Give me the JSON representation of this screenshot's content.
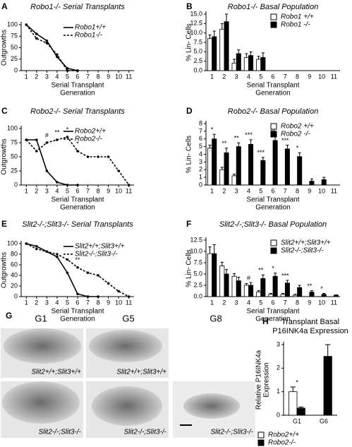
{
  "chart_data": [
    {
      "panel": "A",
      "type": "line",
      "title": "Robo1-/- Serial Transplants",
      "ylabel": [
        "% Glands With",
        "Outgrowths"
      ],
      "xlabel": [
        "Serial Transplant",
        "Generation"
      ],
      "x": [
        1,
        2,
        3,
        4,
        5,
        6,
        7,
        8,
        9,
        10,
        11
      ],
      "xlim": [
        0.5,
        11.5
      ],
      "xticks": [
        1,
        2,
        3,
        4,
        5,
        6,
        7,
        8,
        9,
        10,
        11
      ],
      "ylim": [
        0,
        100
      ],
      "yticks": [
        0,
        25,
        50,
        75,
        100
      ],
      "legend": "upper right",
      "series": [
        {
          "name": "Robo1+/+",
          "color": "#000000",
          "style": "solid",
          "values": [
            100,
            80,
            65,
            30,
            5,
            0,
            null,
            null,
            null,
            null,
            null
          ]
        },
        {
          "name": "Robo1-/-",
          "color": "#000000",
          "style": "dashed",
          "values": [
            100,
            70,
            60,
            35,
            0,
            0,
            null,
            null,
            null,
            null,
            null
          ]
        }
      ]
    },
    {
      "panel": "B",
      "type": "bar",
      "title": "Robo1-/- Basal Population",
      "ylabel": [
        "% Lin- Cells"
      ],
      "xlabel": [
        "Serial Transplant",
        "Generation"
      ],
      "categories": [
        "1",
        "2",
        "3",
        "4",
        "5",
        "6",
        "7",
        "8",
        "9",
        "10",
        "11"
      ],
      "ylim": [
        0,
        15
      ],
      "yticks": [
        {
          "value": 0,
          "label": "0.0"
        },
        2.5,
        {
          "value": 5,
          "label": "5.0"
        },
        7.5,
        {
          "value": 10,
          "label": "10.0"
        },
        12.5,
        {
          "value": 15,
          "label": "15.0"
        }
      ],
      "legend": "upper right",
      "series": [
        {
          "name": "Robo1 +/+",
          "color": "#ffffff",
          "values": [
            8.5,
            11,
            2,
            3.5,
            3,
            null,
            null,
            null,
            null,
            null,
            null
          ],
          "errors": [
            1,
            1.5,
            1,
            1,
            0.8,
            null,
            null,
            null,
            null,
            null,
            null
          ]
        },
        {
          "name": "Robo1 -/-",
          "color": "#000000",
          "values": [
            9,
            13,
            4.5,
            4,
            3.5,
            null,
            null,
            null,
            null,
            null,
            null
          ],
          "errors": [
            1.5,
            2,
            1,
            1,
            1.2,
            null,
            null,
            null,
            null,
            null,
            null
          ]
        }
      ]
    },
    {
      "panel": "C",
      "type": "line",
      "title": "Robo2-/- Serial Transplants",
      "ylabel": [
        "% Glands With",
        "Outgrowths"
      ],
      "xlabel": [
        "Serial Transplant",
        "Generation"
      ],
      "x": [
        1,
        2,
        3,
        4,
        5,
        6,
        7,
        8,
        9,
        10,
        11
      ],
      "xlim": [
        0.5,
        11.5
      ],
      "xticks": [
        1,
        2,
        3,
        4,
        5,
        6,
        7,
        8,
        9,
        10,
        11
      ],
      "ylim": [
        0,
        100
      ],
      "yticks": [
        0,
        25,
        50,
        75,
        100
      ],
      "legend": "upper right",
      "annotations": [
        null,
        null,
        "#",
        "**",
        "*",
        "*",
        null,
        null,
        null,
        null,
        null
      ],
      "series": [
        {
          "name": "Robo2+/+",
          "color": "#000000",
          "style": "solid",
          "values": [
            80,
            80,
            25,
            5,
            0,
            0,
            null,
            null,
            null,
            null,
            null
          ]
        },
        {
          "name": "Robo2-/-",
          "color": "#000000",
          "style": "dashed",
          "values": [
            80,
            60,
            75,
            80,
            85,
            60,
            50,
            50,
            50,
            25,
            0
          ]
        }
      ]
    },
    {
      "panel": "D",
      "type": "bar",
      "title": "Robo2-/- Basal Population",
      "ylabel": [
        "% Lin- Cells"
      ],
      "xlabel": [
        "Serial Transplant",
        "Generation"
      ],
      "categories": [
        "1",
        "2",
        "3",
        "4",
        "5",
        "6",
        "7",
        "8",
        "9",
        "10",
        "11"
      ],
      "ylim": [
        0,
        8
      ],
      "yticks": [
        0,
        1,
        2,
        3,
        4,
        5,
        6,
        7,
        8
      ],
      "legend": "upper right",
      "annotations": [
        "*",
        "**",
        "**",
        "***",
        "***",
        "**",
        "***",
        "*",
        null,
        null,
        null
      ],
      "series": [
        {
          "name": "Robo2 +/+",
          "color": "#ffffff",
          "values": [
            4.8,
            2,
            1.2,
            null,
            null,
            null,
            null,
            null,
            null,
            null,
            null
          ],
          "errors": [
            0.4,
            0.3,
            0.2,
            null,
            null,
            null,
            null,
            null,
            null,
            null,
            null
          ]
        },
        {
          "name": "Robo2 -/-",
          "color": "#000000",
          "values": [
            6,
            4.2,
            5,
            5.3,
            3.2,
            5.8,
            4.7,
            3.7,
            0.5,
            0.7,
            null
          ],
          "errors": [
            0.6,
            0.6,
            0.5,
            0.6,
            0.4,
            0.5,
            0.5,
            0.5,
            0.3,
            0.3,
            null
          ]
        }
      ]
    },
    {
      "panel": "E",
      "type": "line",
      "title": "Slit2-/-;Slit3-/- Serial Transplants",
      "ylabel": [
        "% Glands With",
        "Outgrowths"
      ],
      "xlabel": [
        "Serial Transplant",
        "Generation"
      ],
      "x": [
        1,
        2,
        3,
        4,
        5,
        6,
        7,
        8,
        9,
        10,
        11
      ],
      "xlim": [
        0.5,
        11.5
      ],
      "xticks": [
        1,
        2,
        3,
        4,
        5,
        6,
        7,
        8,
        9,
        10,
        11
      ],
      "ylim": [
        0,
        100
      ],
      "yticks": [
        0,
        20,
        40,
        60,
        80,
        100
      ],
      "legend": "upper right",
      "annotations": [
        null,
        null,
        null,
        null,
        null,
        "**",
        null,
        null,
        null,
        null,
        null
      ],
      "series": [
        {
          "name": "Slit2+/+;Slit3+/+",
          "color": "#000000",
          "style": "solid",
          "values": [
            100,
            95,
            85,
            75,
            45,
            5,
            0,
            0,
            null,
            null,
            null
          ]
        },
        {
          "name": "Slit2-/-;Slit3-/-",
          "color": "#000000",
          "style": "dashed",
          "values": [
            100,
            90,
            85,
            80,
            70,
            55,
            45,
            40,
            25,
            10,
            0
          ]
        }
      ]
    },
    {
      "panel": "F",
      "type": "bar",
      "title": "Slit2-/-;Slit3-/- Basal Population",
      "ylabel": [
        "% Lin- Cells"
      ],
      "xlabel": [
        "Serial Transplant",
        "Generation"
      ],
      "categories": [
        "1",
        "2",
        "3",
        "4",
        "5",
        "6",
        "7",
        "8",
        "9",
        "10",
        "11"
      ],
      "ylim": [
        0,
        12.5
      ],
      "yticks": [
        {
          "value": 0,
          "label": "0.0"
        },
        2.5,
        {
          "value": 5,
          "label": "5.0"
        },
        7.5,
        {
          "value": 10,
          "label": "10.0"
        },
        12.5
      ],
      "legend": "upper right",
      "annotations": [
        null,
        null,
        null,
        "#",
        "**",
        "*",
        "***",
        null,
        "**",
        "*",
        null
      ],
      "series": [
        {
          "name": "Slit2+/+;Slit3+/+",
          "color": "#ffffff",
          "values": [
            9.5,
            6.8,
            4.5,
            2.5,
            1,
            0.5,
            0.5,
            0.3,
            null,
            null,
            null
          ],
          "errors": [
            1.5,
            0.8,
            0.6,
            0.4,
            0.3,
            0.2,
            0.2,
            0.2,
            null,
            null,
            null
          ]
        },
        {
          "name": "Slit2-/-;Slit3-/-",
          "color": "#000000",
          "values": [
            9.5,
            5,
            3.5,
            2.5,
            4,
            4.5,
            3,
            2,
            1,
            0.5,
            0.3
          ],
          "errors": [
            2,
            1,
            0.8,
            0.6,
            0.8,
            0.7,
            0.6,
            0.5,
            0.3,
            0.2,
            0.1
          ]
        }
      ]
    },
    {
      "panel": "H",
      "type": "bar",
      "title": [
        "Transplant Basal",
        "P16INK4a Expression"
      ],
      "ylabel": [
        "Relative P16INK4a",
        "Expression"
      ],
      "xlabel": [],
      "categories": [
        "G1",
        "G6"
      ],
      "ylim": [
        0,
        3
      ],
      "yticks": [
        0,
        1,
        2,
        3
      ],
      "legend": "below",
      "annotations": [
        "*",
        null
      ],
      "series": [
        {
          "name": "Robo2+/+",
          "color": "#ffffff",
          "values": [
            1.0,
            null
          ],
          "errors": [
            0.2,
            null
          ]
        },
        {
          "name": "Robo2-/-",
          "color": "#000000",
          "values": [
            0.3,
            2.5
          ],
          "errors": [
            0.05,
            0.5
          ]
        }
      ]
    }
  ],
  "panel_g": {
    "label": "G",
    "columns": [
      "G1",
      "G5",
      "G8"
    ],
    "captions": [
      [
        "Slit2+/+;Slit3+/+",
        "Slit2+/+;Slit3+/+"
      ],
      [
        "Slit2-/-;Slit3-/-",
        "Slit2-/-;Slit3-/-",
        "Slit2-/-;Slit3-/-"
      ]
    ]
  }
}
